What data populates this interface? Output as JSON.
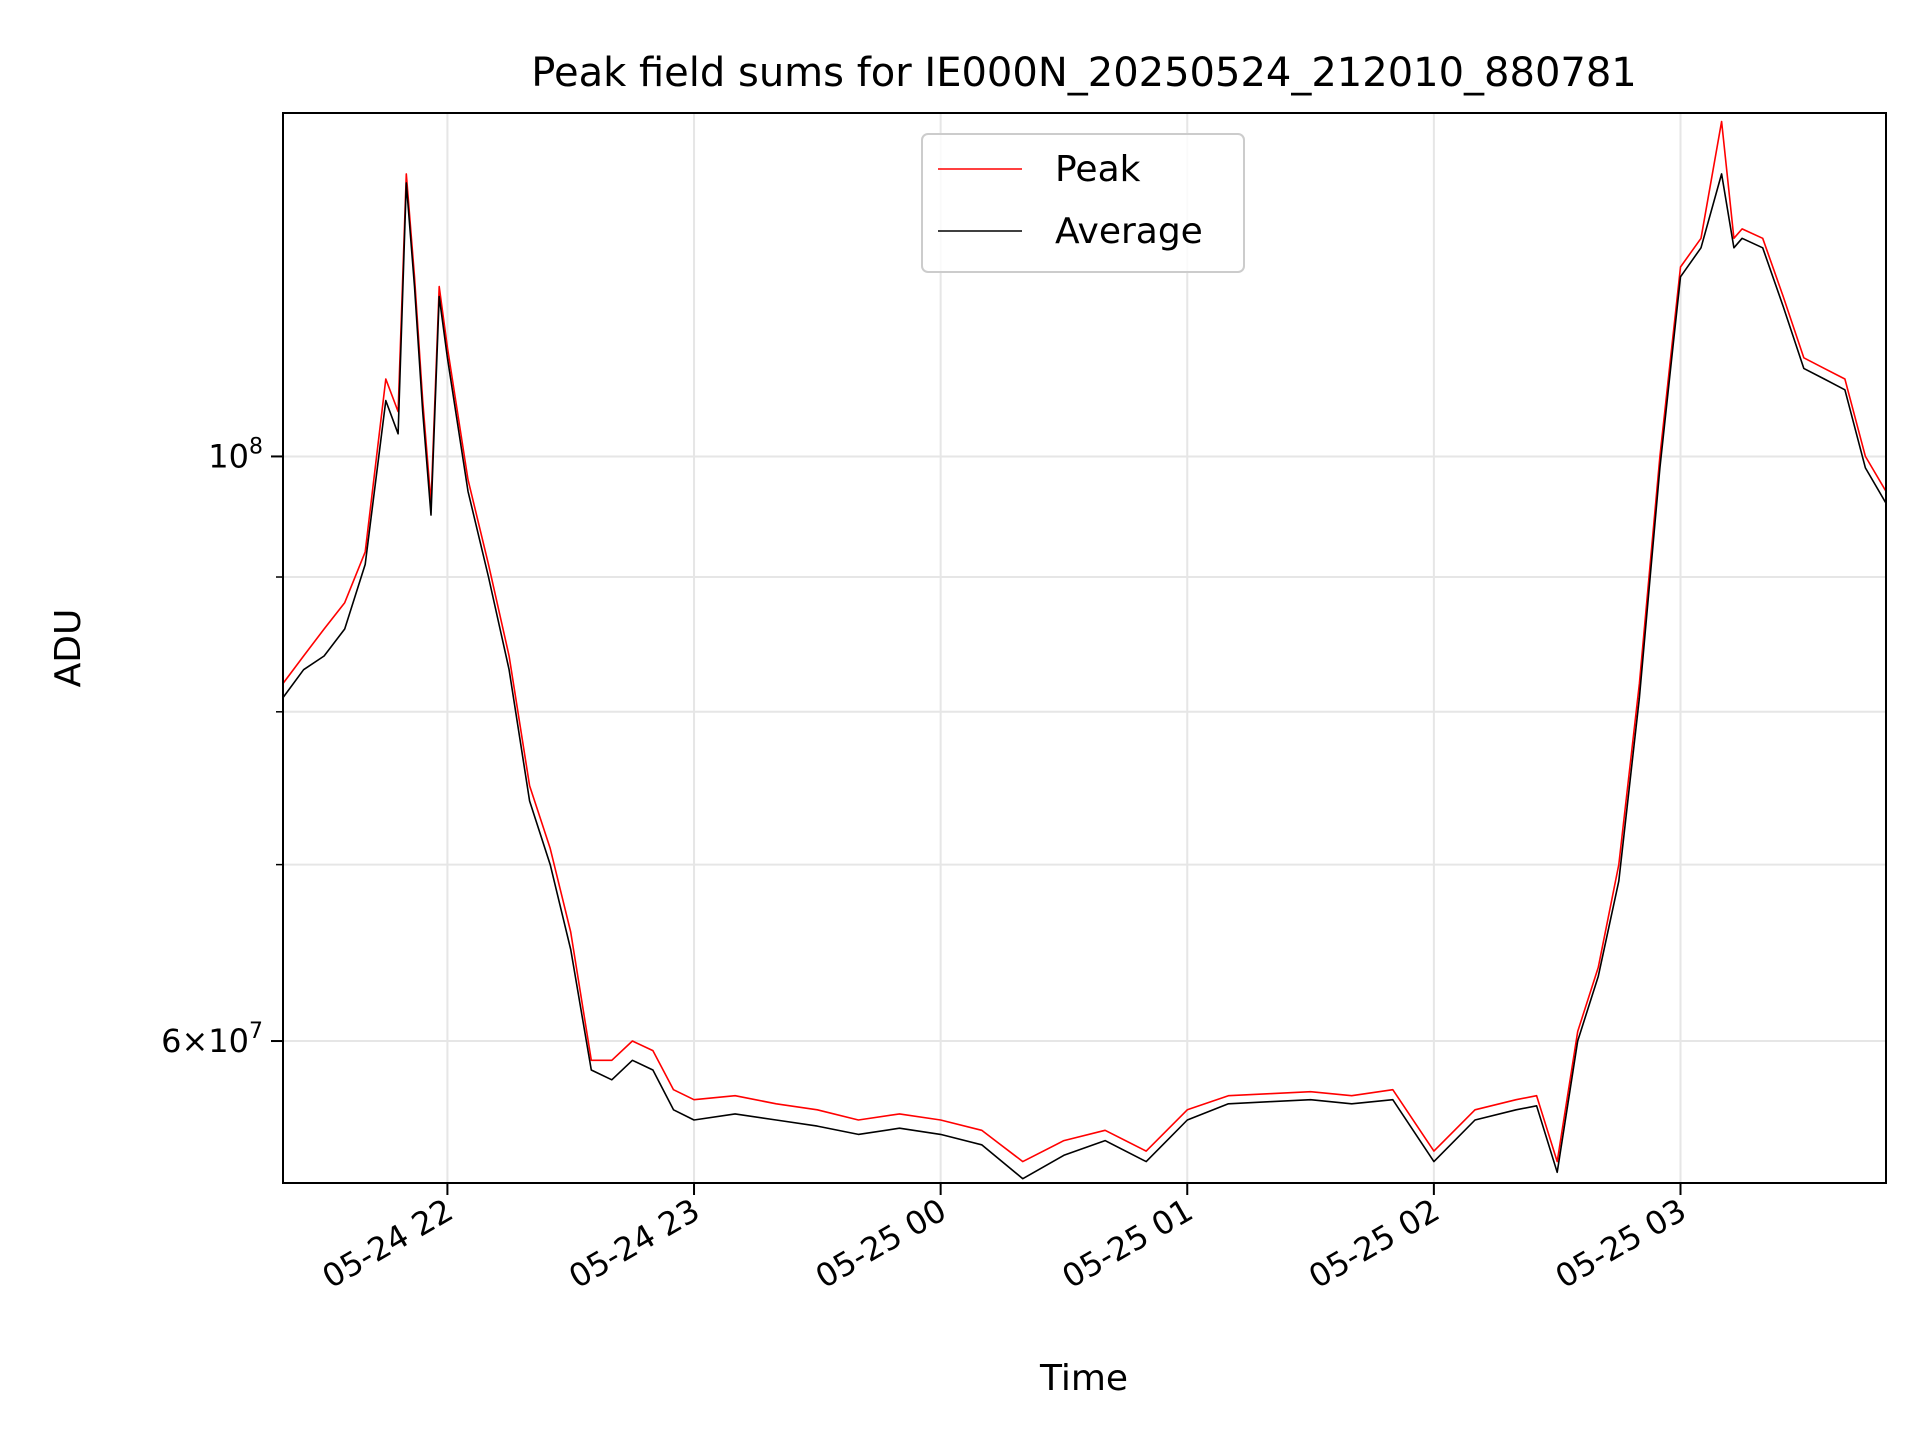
{
  "chart_data": {
    "type": "line",
    "title": "Peak field sums for IE000N_20250524_212010_880781",
    "xlabel": "Time",
    "ylabel": "ADU",
    "yscale": "log",
    "xlim": [
      "2025-05-24 21:20",
      "2025-05-25 03:50"
    ],
    "ylim": [
      53000000,
      135000000
    ],
    "x_ticks": [
      {
        "t": "2025-05-24 22:00",
        "label": "05-24 22"
      },
      {
        "t": "2025-05-24 23:00",
        "label": "05-24 23"
      },
      {
        "t": "2025-05-25 00:00",
        "label": "05-25 00"
      },
      {
        "t": "2025-05-25 01:00",
        "label": "05-25 01"
      },
      {
        "t": "2025-05-25 02:00",
        "label": "05-25 02"
      },
      {
        "t": "2025-05-25 03:00",
        "label": "05-25 03"
      }
    ],
    "y_major_ticks": [
      {
        "value": 100000000,
        "base": "10",
        "exp": "8",
        "mant": ""
      },
      {
        "value": 60000000,
        "base": "10",
        "exp": "7",
        "mant": "6"
      }
    ],
    "y_minor_ticks": [
      70000000,
      80000000,
      90000000
    ],
    "grid": true,
    "legend_position": "top-center",
    "series": [
      {
        "name": "Peak",
        "color": "#ff0000",
        "x": [
          "2025-05-24 21:20",
          "2025-05-24 21:25",
          "2025-05-24 21:30",
          "2025-05-24 21:35",
          "2025-05-24 21:40",
          "2025-05-24 21:45",
          "2025-05-24 21:48",
          "2025-05-24 21:50",
          "2025-05-24 21:52",
          "2025-05-24 21:54",
          "2025-05-24 21:56",
          "2025-05-24 21:58",
          "2025-05-24 22:00",
          "2025-05-24 22:05",
          "2025-05-24 22:10",
          "2025-05-24 22:15",
          "2025-05-24 22:20",
          "2025-05-24 22:25",
          "2025-05-24 22:30",
          "2025-05-24 22:35",
          "2025-05-24 22:40",
          "2025-05-24 22:45",
          "2025-05-24 22:50",
          "2025-05-24 22:55",
          "2025-05-24 23:00",
          "2025-05-24 23:10",
          "2025-05-24 23:20",
          "2025-05-24 23:30",
          "2025-05-24 23:40",
          "2025-05-24 23:50",
          "2025-05-25 00:00",
          "2025-05-25 00:10",
          "2025-05-25 00:20",
          "2025-05-25 00:30",
          "2025-05-25 00:40",
          "2025-05-25 00:50",
          "2025-05-25 01:00",
          "2025-05-25 01:10",
          "2025-05-25 01:20",
          "2025-05-25 01:30",
          "2025-05-25 01:40",
          "2025-05-25 01:50",
          "2025-05-25 02:00",
          "2025-05-25 02:10",
          "2025-05-25 02:20",
          "2025-05-25 02:25",
          "2025-05-25 02:30",
          "2025-05-25 02:35",
          "2025-05-25 02:40",
          "2025-05-25 02:45",
          "2025-05-25 02:50",
          "2025-05-25 02:55",
          "2025-05-25 03:00",
          "2025-05-25 03:05",
          "2025-05-25 03:10",
          "2025-05-25 03:13",
          "2025-05-25 03:15",
          "2025-05-25 03:20",
          "2025-05-25 03:25",
          "2025-05-25 03:30",
          "2025-05-25 03:35",
          "2025-05-25 03:40",
          "2025-05-25 03:45",
          "2025-05-25 03:50"
        ],
        "y": [
          82000000,
          84000000,
          86000000,
          88000000,
          92000000,
          107000000,
          104000000,
          128000000,
          117000000,
          105000000,
          96000000,
          116000000,
          110000000,
          98000000,
          91000000,
          84000000,
          75000000,
          71000000,
          66000000,
          59000000,
          59000000,
          60000000,
          59500000,
          57500000,
          57000000,
          57200000,
          56800000,
          56500000,
          56000000,
          56300000,
          56000000,
          55500000,
          54000000,
          55000000,
          55500000,
          54500000,
          56500000,
          57200000,
          57300000,
          57400000,
          57200000,
          57500000,
          54500000,
          56500000,
          57000000,
          57200000,
          54000000,
          60500000,
          64000000,
          70000000,
          82000000,
          100000000,
          118000000,
          121000000,
          134000000,
          121000000,
          122000000,
          121000000,
          115000000,
          109000000,
          108000000,
          107000000,
          100000000,
          97000000
        ]
      },
      {
        "name": "Average",
        "color": "#000000",
        "x": [
          "2025-05-24 21:20",
          "2025-05-24 21:25",
          "2025-05-24 21:30",
          "2025-05-24 21:35",
          "2025-05-24 21:40",
          "2025-05-24 21:45",
          "2025-05-24 21:48",
          "2025-05-24 21:50",
          "2025-05-24 21:52",
          "2025-05-24 21:54",
          "2025-05-24 21:56",
          "2025-05-24 21:58",
          "2025-05-24 22:00",
          "2025-05-24 22:05",
          "2025-05-24 22:10",
          "2025-05-24 22:15",
          "2025-05-24 22:20",
          "2025-05-24 22:25",
          "2025-05-24 22:30",
          "2025-05-24 22:35",
          "2025-05-24 22:40",
          "2025-05-24 22:45",
          "2025-05-24 22:50",
          "2025-05-24 22:55",
          "2025-05-24 23:00",
          "2025-05-24 23:10",
          "2025-05-24 23:20",
          "2025-05-24 23:30",
          "2025-05-24 23:40",
          "2025-05-24 23:50",
          "2025-05-25 00:00",
          "2025-05-25 00:10",
          "2025-05-25 00:20",
          "2025-05-25 00:30",
          "2025-05-25 00:40",
          "2025-05-25 00:50",
          "2025-05-25 01:00",
          "2025-05-25 01:10",
          "2025-05-25 01:20",
          "2025-05-25 01:30",
          "2025-05-25 01:40",
          "2025-05-25 01:50",
          "2025-05-25 02:00",
          "2025-05-25 02:10",
          "2025-05-25 02:20",
          "2025-05-25 02:25",
          "2025-05-25 02:30",
          "2025-05-25 02:35",
          "2025-05-25 02:40",
          "2025-05-25 02:45",
          "2025-05-25 02:50",
          "2025-05-25 02:55",
          "2025-05-25 03:00",
          "2025-05-25 03:05",
          "2025-05-25 03:10",
          "2025-05-25 03:13",
          "2025-05-25 03:15",
          "2025-05-25 03:20",
          "2025-05-25 03:25",
          "2025-05-25 03:30",
          "2025-05-25 03:35",
          "2025-05-25 03:40",
          "2025-05-25 03:45",
          "2025-05-25 03:50"
        ],
        "y": [
          81000000,
          83000000,
          84000000,
          86000000,
          91000000,
          105000000,
          102000000,
          127000000,
          116000000,
          104000000,
          95000000,
          115000000,
          109000000,
          97000000,
          90000000,
          83000000,
          74000000,
          70000000,
          65000000,
          58500000,
          58000000,
          59000000,
          58500000,
          56500000,
          56000000,
          56300000,
          56000000,
          55700000,
          55300000,
          55600000,
          55300000,
          54800000,
          53200000,
          54300000,
          55000000,
          54000000,
          56000000,
          56800000,
          56900000,
          57000000,
          56800000,
          57000000,
          54000000,
          56000000,
          56500000,
          56700000,
          53500000,
          60000000,
          63500000,
          69000000,
          81000000,
          99000000,
          117000000,
          120000000,
          128000000,
          120000000,
          121000000,
          120000000,
          114000000,
          108000000,
          107000000,
          106000000,
          99000000,
          96000000
        ]
      }
    ]
  }
}
